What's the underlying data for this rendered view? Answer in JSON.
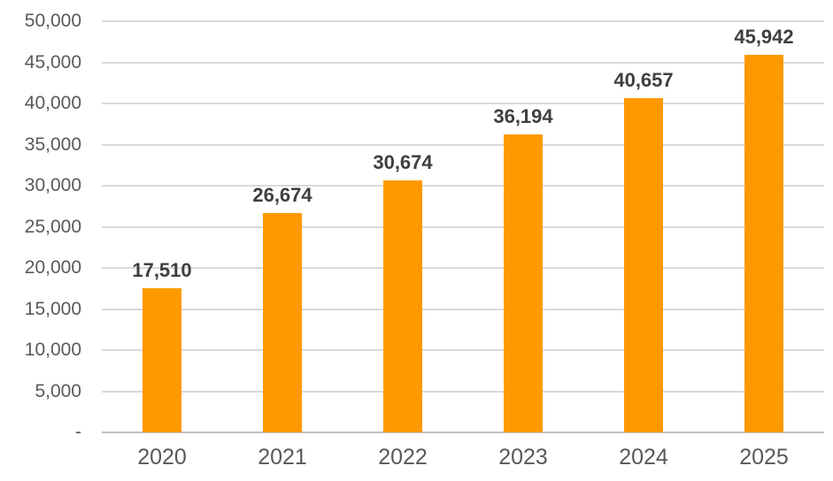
{
  "chart_data": {
    "type": "bar",
    "title": "",
    "xlabel": "",
    "ylabel": "",
    "categories": [
      "2020",
      "2021",
      "2022",
      "2023",
      "2024",
      "2025"
    ],
    "values": [
      17510,
      26674,
      30674,
      36194,
      40657,
      45942
    ],
    "value_labels": [
      "17,510",
      "26,674",
      "30,674",
      "36,194",
      "40,657",
      "45,942"
    ],
    "ylim": [
      0,
      50000
    ],
    "ytick_interval": 5000,
    "ytick_labels": [
      "-",
      "5,000",
      "10,000",
      "15,000",
      "20,000",
      "25,000",
      "30,000",
      "35,000",
      "40,000",
      "45,000",
      "50,000"
    ],
    "grid": true,
    "legend": "none",
    "colors": {
      "bar": "#FF9900",
      "data_label": "#3F3F3F",
      "axis_text": "#595959",
      "gridline": "#D9D9D9",
      "baseline": "#BFBFBF",
      "background": "#FFFFFF"
    }
  }
}
